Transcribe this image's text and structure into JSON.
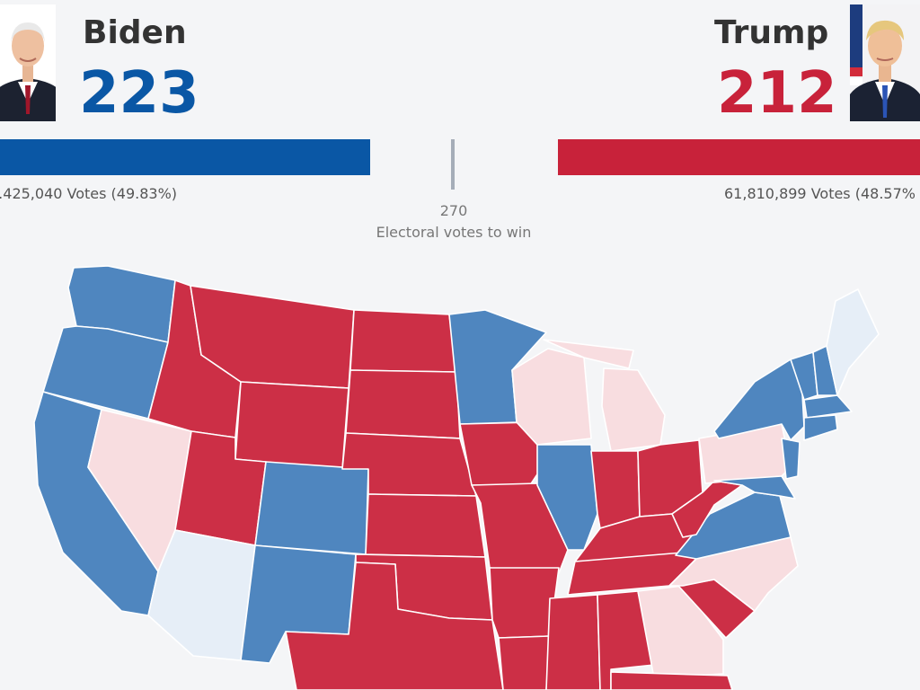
{
  "left_candidate": {
    "name": "Biden",
    "electoral_votes": "223",
    "popular_votes": "...425,040 Votes (49.83%)",
    "color": "#0a57a5",
    "portrait": "biden-portrait"
  },
  "right_candidate": {
    "name": "Trump",
    "electoral_votes": "212",
    "popular_votes": "61,810,899 Votes (48.57%",
    "color": "#c8223a",
    "portrait": "trump-portrait"
  },
  "threshold": {
    "value": "270",
    "label": "Electoral votes to win"
  },
  "colors": {
    "dem": "#4f86bf",
    "rep": "#cc2f46",
    "lean_rep": "#f8dde0",
    "lean_dem": "#e6eef7",
    "outline": "#ffffff"
  }
}
